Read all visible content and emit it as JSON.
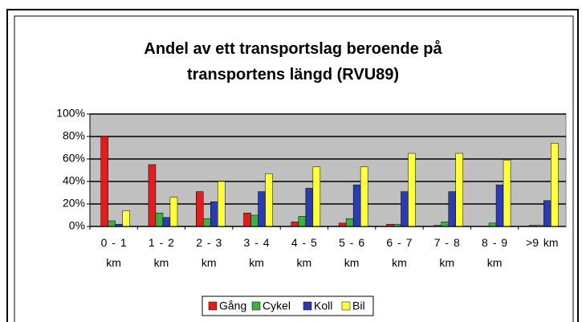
{
  "chart_data": {
    "type": "bar",
    "title": "Andel av ett transportslag beroende på transportens längd (RVU89)",
    "categories": [
      "0 - 1 km",
      "1 - 2 km",
      "2 - 3 km",
      "3 - 4 km",
      "4 - 5 km",
      "5 - 6 km",
      "6 - 7 km",
      "7 - 8 km",
      "8 - 9 km",
      ">9 km"
    ],
    "series": [
      {
        "name": "Gång",
        "color": "#e01e1e",
        "values": [
          80,
          55,
          31,
          12,
          4,
          3,
          2,
          1,
          0,
          1
        ]
      },
      {
        "name": "Cykel",
        "color": "#3cb043",
        "values": [
          5,
          12,
          7,
          10,
          9,
          7,
          2,
          4,
          3,
          1
        ]
      },
      {
        "name": "Koll",
        "color": "#2a3caf",
        "values": [
          2,
          8,
          22,
          31,
          34,
          37,
          31,
          31,
          37,
          23
        ]
      },
      {
        "name": "Bil",
        "color": "#ffff3c",
        "values": [
          14,
          26,
          40,
          47,
          53,
          53,
          65,
          65,
          59,
          74
        ]
      }
    ],
    "ylim": [
      0,
      100
    ],
    "yticks": [
      {
        "value": 0,
        "label": "0%"
      },
      {
        "value": 20,
        "label": "20%"
      },
      {
        "value": 40,
        "label": "40%"
      },
      {
        "value": 60,
        "label": "60%"
      },
      {
        "value": 80,
        "label": "80%"
      },
      {
        "value": 100,
        "label": "100%"
      }
    ],
    "grid": true,
    "legend": "bottom"
  }
}
